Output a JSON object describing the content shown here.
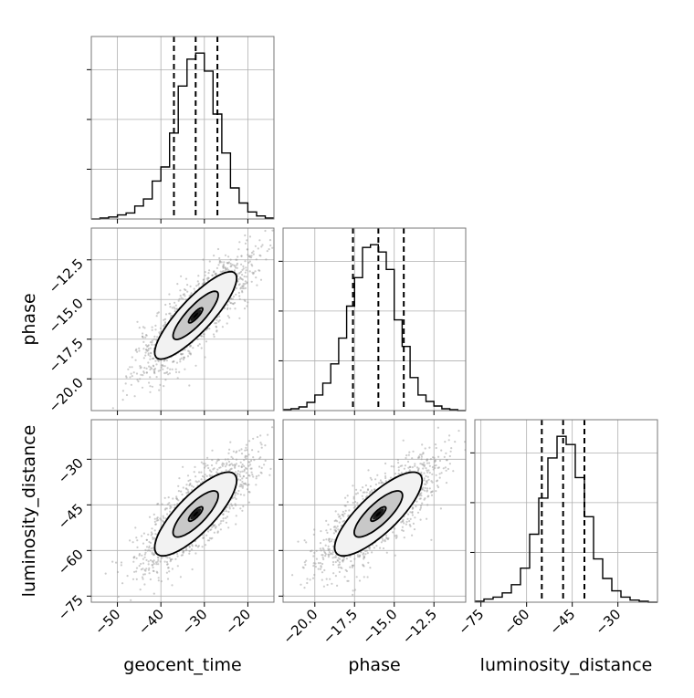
{
  "chart_data": {
    "type": "corner",
    "parameters": [
      {
        "name": "geocent_time",
        "label": "geocent_time",
        "range": [
          -56,
          -14
        ],
        "ticks": [
          -50,
          -40,
          -30,
          -20
        ],
        "tick_labels": [
          "−50",
          "−40",
          "−30",
          "−20"
        ],
        "median": -32,
        "q_low": -37,
        "q_high": -27
      },
      {
        "name": "phase",
        "label": "phase",
        "range": [
          -22,
          -10.5
        ],
        "ticks": [
          -20.0,
          -17.5,
          -15.0,
          -12.5
        ],
        "tick_labels": [
          "−20.0",
          "−17.5",
          "−15.0",
          "−12.5"
        ],
        "median": -16,
        "q_low": -17.6,
        "q_high": -14.4
      },
      {
        "name": "luminosity_distance",
        "label": "luminosity_distance",
        "range": [
          -77,
          -17
        ],
        "ticks": [
          -75,
          -60,
          -45,
          -30
        ],
        "tick_labels": [
          "−75",
          "−60",
          "−45",
          "−30"
        ],
        "median": -48,
        "q_low": -55,
        "q_high": -41
      }
    ],
    "histograms": [
      {
        "param": "geocent_time",
        "bin_edges": [
          -56,
          -54,
          -52,
          -50,
          -48,
          -46,
          -44,
          -42,
          -40,
          -38,
          -36,
          -34,
          -32,
          -30,
          -28,
          -26,
          -24,
          -22,
          -20,
          -18,
          -16,
          -14
        ],
        "counts": [
          0,
          1,
          2,
          4,
          6,
          13,
          20,
          38,
          52,
          86,
          133,
          160,
          166,
          148,
          105,
          66,
          31,
          16,
          7,
          3,
          1
        ]
      },
      {
        "param": "phase",
        "bin_edges": [
          -22,
          -21.5,
          -21,
          -20.5,
          -20,
          -19.5,
          -19,
          -18.5,
          -18,
          -17.5,
          -17,
          -16.5,
          -16,
          -15.5,
          -15,
          -14.5,
          -14,
          -13.5,
          -13,
          -12.5,
          -12,
          -11.5,
          -11,
          -10.5
        ],
        "counts": [
          1,
          2,
          4,
          9,
          17,
          30,
          51,
          79,
          114,
          145,
          178,
          181,
          173,
          154,
          99,
          70,
          36,
          17,
          10,
          5,
          2,
          1,
          0
        ]
      },
      {
        "param": "luminosity_distance",
        "bin_edges": [
          -77,
          -74,
          -71,
          -68,
          -65,
          -62,
          -59,
          -56,
          -53,
          -50,
          -47,
          -44,
          -41,
          -38,
          -35,
          -32,
          -29,
          -26,
          -23,
          -20,
          -17
        ],
        "counts": [
          1,
          3,
          5,
          9,
          17,
          33,
          66,
          101,
          140,
          161,
          153,
          121,
          83,
          42,
          23,
          11,
          5,
          2,
          1,
          0
        ]
      }
    ],
    "pairs": [
      {
        "x": "geocent_time",
        "y": "phase",
        "center": [
          -32,
          -16
        ],
        "sx": 6.5,
        "sy": 1.9,
        "rho": 0.85,
        "levels": [
          0.25,
          0.8,
          1.45
        ]
      },
      {
        "x": "geocent_time",
        "y": "luminosity_distance",
        "center": [
          -32,
          -48
        ],
        "sx": 6.5,
        "sy": 9.5,
        "rho": 0.8,
        "levels": [
          0.25,
          0.8,
          1.45
        ]
      },
      {
        "x": "phase",
        "y": "luminosity_distance",
        "center": [
          -16,
          -48
        ],
        "sx": 1.9,
        "sy": 9.5,
        "rho": 0.8,
        "levels": [
          0.25,
          0.8,
          1.45
        ]
      }
    ]
  }
}
